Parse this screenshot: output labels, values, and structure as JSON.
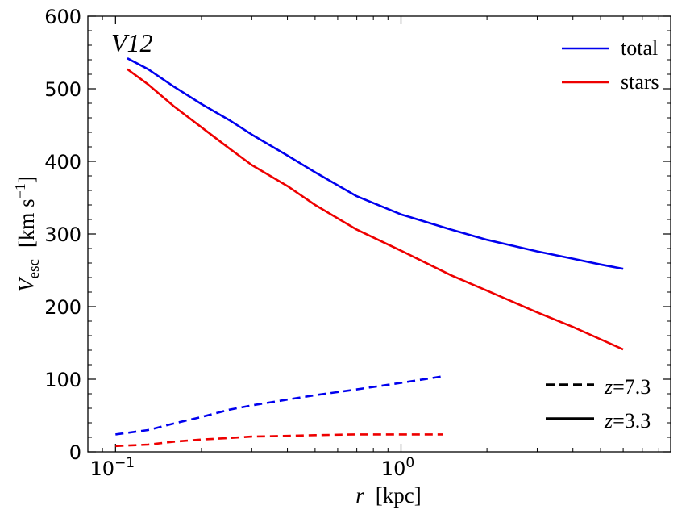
{
  "chart_data": {
    "type": "line",
    "panel_label": "V12",
    "xlabel_var": "r",
    "xlabel_unit": "[kpc]",
    "ylabel_var": "V",
    "ylabel_sub": "esc",
    "ylabel_unit_pre": "[km s",
    "ylabel_unit_sup": "−1",
    "ylabel_unit_post": "]",
    "xscale": "log",
    "xlim": [
      0.08,
      8.8
    ],
    "ylim": [
      0,
      600
    ],
    "x_ticks": [
      {
        "value": 0.1,
        "base": "10",
        "exp": "−1"
      },
      {
        "value": 1.0,
        "base": "10",
        "exp": "0"
      }
    ],
    "y_ticks": [
      0,
      100,
      200,
      300,
      400,
      500,
      600
    ],
    "colors": {
      "total": "#0000ee",
      "stars": "#ee0000",
      "axis": "#000000"
    },
    "legend_components": [
      {
        "label": "total",
        "color": "#0000ee"
      },
      {
        "label": "stars",
        "color": "#ee0000"
      }
    ],
    "legend_redshift": [
      {
        "z": "7.3",
        "style": "dashed"
      },
      {
        "z": "3.3",
        "style": "solid"
      }
    ],
    "series": [
      {
        "name": "total",
        "z": "3.3",
        "style": "solid",
        "color": "#0000ee",
        "x": [
          0.11,
          0.13,
          0.16,
          0.2,
          0.25,
          0.3,
          0.4,
          0.5,
          0.7,
          1.0,
          1.5,
          2.0,
          3.0,
          4.0,
          5.0,
          6.0
        ],
        "y": [
          542,
          527,
          503,
          479,
          457,
          437,
          408,
          385,
          352,
          327,
          306,
          292,
          276,
          266,
          258,
          252
        ]
      },
      {
        "name": "stars",
        "z": "3.3",
        "style": "solid",
        "color": "#ee0000",
        "x": [
          0.11,
          0.13,
          0.16,
          0.2,
          0.25,
          0.3,
          0.4,
          0.5,
          0.7,
          1.0,
          1.5,
          2.0,
          3.0,
          4.0,
          5.0,
          6.0
        ],
        "y": [
          527,
          506,
          476,
          447,
          418,
          395,
          366,
          340,
          306,
          277,
          243,
          222,
          192,
          172,
          155,
          141
        ]
      },
      {
        "name": "total",
        "z": "7.3",
        "style": "dashed",
        "color": "#0000ee",
        "x": [
          0.1,
          0.13,
          0.16,
          0.2,
          0.25,
          0.3,
          0.4,
          0.5,
          0.7,
          1.0,
          1.4
        ],
        "y": [
          24,
          30,
          39,
          48,
          58,
          64,
          72,
          78,
          86,
          95,
          104
        ]
      },
      {
        "name": "stars",
        "z": "7.3",
        "style": "dashed",
        "color": "#ee0000",
        "x": [
          0.1,
          0.13,
          0.16,
          0.2,
          0.25,
          0.3,
          0.4,
          0.5,
          0.7,
          1.0,
          1.4
        ],
        "y": [
          8,
          10,
          14,
          17,
          19,
          21,
          22,
          23,
          24,
          24,
          24
        ]
      }
    ]
  }
}
